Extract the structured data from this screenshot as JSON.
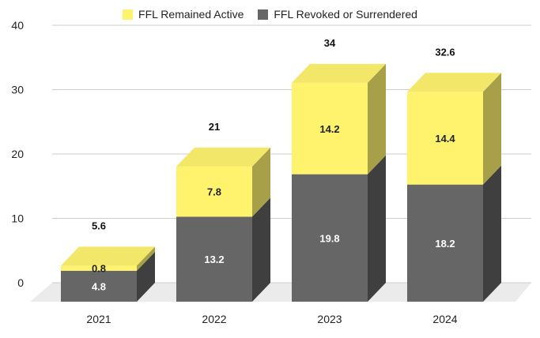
{
  "chart_data": {
    "type": "bar",
    "stacked": true,
    "style": "3d",
    "categories": [
      "2021",
      "2022",
      "2023",
      "2024"
    ],
    "series": [
      {
        "name": "FFL Revoked or Surrendered",
        "values": [
          4.8,
          13.2,
          19.8,
          18.2
        ],
        "labels": [
          "4.8",
          "13.2",
          "19.8",
          "18.2"
        ],
        "color": "#666666"
      },
      {
        "name": "FFL Remained Active",
        "values": [
          0.8,
          7.8,
          14.2,
          14.4
        ],
        "labels": [
          "0.8",
          "7.8",
          "14.2",
          "14.4"
        ],
        "color": "#FFF36E"
      }
    ],
    "totals": [
      5.6,
      21,
      34,
      32.6
    ],
    "total_labels": [
      "5.6",
      "21",
      "34",
      "32.6"
    ],
    "yticks": [
      "0",
      "10",
      "20",
      "30",
      "40"
    ],
    "ylim": [
      0,
      40
    ],
    "grid": true,
    "legend": "top"
  }
}
